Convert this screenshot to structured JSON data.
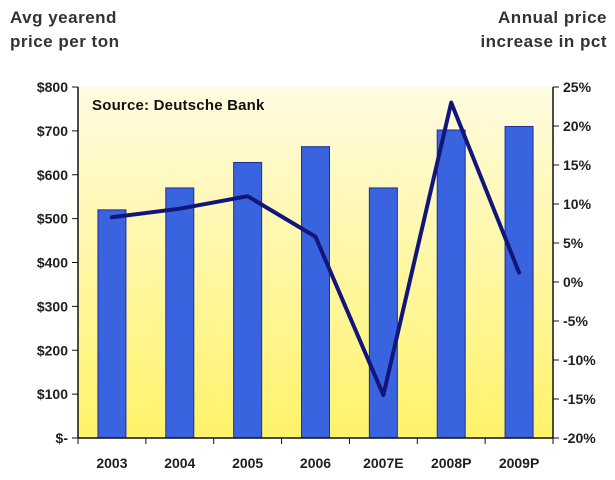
{
  "chart_data": {
    "type": "bar",
    "categories": [
      "2003",
      "2004",
      "2005",
      "2006",
      "2007E",
      "2008P",
      "2009P"
    ],
    "series": [
      {
        "chart": "bar",
        "axis": "left",
        "values": [
          520,
          570,
          628,
          664,
          570,
          702,
          710
        ]
      },
      {
        "chart": "line",
        "axis": "right",
        "values": [
          8.3,
          9.4,
          11.0,
          5.8,
          -14.5,
          23.0,
          1.2
        ]
      }
    ],
    "ylim_left": [
      0,
      800
    ],
    "ylim_right": [
      -20,
      25
    ],
    "left_axis": {
      "title_line1": "Avg yearend",
      "title_line2": "price per ton",
      "tick_labels": [
        "$-",
        "$100",
        "$200",
        "$300",
        "$400",
        "$500",
        "$600",
        "$700",
        "$800"
      ]
    },
    "right_axis": {
      "title_line1": "Annual price",
      "title_line2": "increase in pct",
      "tick_labels": [
        "-20%",
        "-15%",
        "-10%",
        "-5%",
        "0%",
        "5%",
        "10%",
        "15%",
        "20%",
        "25%"
      ]
    },
    "annotation": "Source: Deutsche Bank",
    "grid": false,
    "colors": {
      "bar_fill": "#3a63e0",
      "bar_stroke": "#1d2f9a",
      "line": "#12167a",
      "plot_bg_top": "#fffbe0",
      "plot_bg_bottom": "#fff36a",
      "axis": "#111111"
    }
  }
}
